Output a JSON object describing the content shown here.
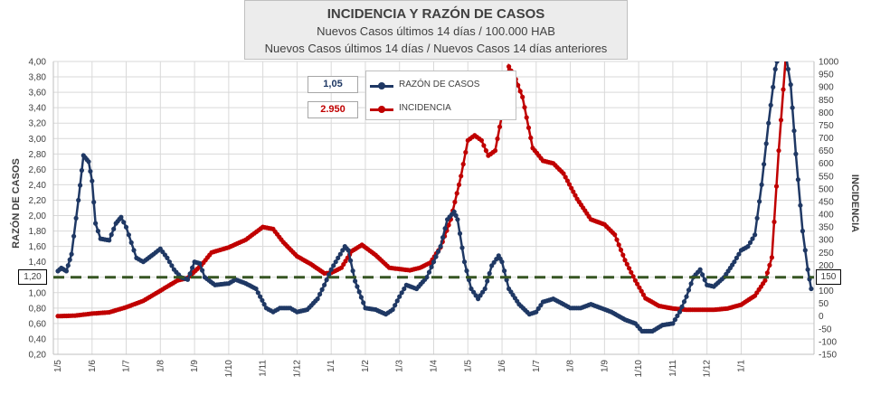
{
  "header": {
    "title": "INCIDENCIA Y RAZÓN DE CASOS",
    "subtitle1": "Nuevos Casos últimos 14 días / 100.000  HAB",
    "subtitle2": "Nuevos Casos últimos 14 días / Nuevos Casos 14 días anteriores"
  },
  "current": {
    "ratio": "1,05",
    "incidence": "2.950"
  },
  "colors": {
    "ratio": "#1f3864",
    "incidence": "#c00000",
    "threshold": "#375623",
    "grid": "#d9d9d9"
  },
  "chart_data": {
    "type": "line",
    "title": "INCIDENCIA Y RAZÓN DE CASOS",
    "ylabel_left": "RAZÓN DE CASOS",
    "ylabel_right": "INCIDENCIA",
    "ylim_left": [
      0.2,
      4.0
    ],
    "ylim_right": [
      -150,
      1000
    ],
    "threshold": {
      "value": 1.2,
      "left_label": "1,20",
      "right_label": "150"
    },
    "x_tick_labels": [
      "1/5",
      "1/6",
      "1/7",
      "1/8",
      "1/9",
      "1/10",
      "1/11",
      "1/12",
      "1/1",
      "1/2",
      "1/3",
      "1/4",
      "1/5",
      "1/6",
      "1/7",
      "1/8",
      "1/9",
      "1/10",
      "1/11",
      "1/12",
      "1/1"
    ],
    "left_tick_labels": [
      "0,20",
      "0,40",
      "0,60",
      "0,80",
      "1,00",
      "1,20",
      "1,40",
      "1,60",
      "1,80",
      "2,00",
      "2,20",
      "2,40",
      "2,60",
      "2,80",
      "3,00",
      "3,20",
      "3,40",
      "3,60",
      "3,80",
      "4,00"
    ],
    "right_tick_labels": [
      "-150",
      "-100",
      "-50",
      "0",
      "50",
      "100",
      "150",
      "200",
      "250",
      "300",
      "350",
      "400",
      "450",
      "500",
      "550",
      "600",
      "650",
      "700",
      "750",
      "800",
      "850",
      "900",
      "950",
      "1000"
    ],
    "series": [
      {
        "name": "RAZÓN DE CASOS",
        "axis": "left",
        "points": [
          [
            0,
            1.28
          ],
          [
            0.1,
            1.32
          ],
          [
            0.25,
            1.28
          ],
          [
            0.4,
            1.5
          ],
          [
            0.6,
            2.2
          ],
          [
            0.75,
            2.78
          ],
          [
            0.9,
            2.7
          ],
          [
            1.0,
            2.45
          ],
          [
            1.1,
            1.9
          ],
          [
            1.25,
            1.7
          ],
          [
            1.5,
            1.68
          ],
          [
            1.7,
            1.9
          ],
          [
            1.85,
            1.98
          ],
          [
            2.0,
            1.85
          ],
          [
            2.15,
            1.65
          ],
          [
            2.3,
            1.45
          ],
          [
            2.5,
            1.4
          ],
          [
            2.8,
            1.5
          ],
          [
            3.0,
            1.57
          ],
          [
            3.2,
            1.45
          ],
          [
            3.4,
            1.3
          ],
          [
            3.6,
            1.2
          ],
          [
            3.8,
            1.17
          ],
          [
            4.0,
            1.4
          ],
          [
            4.15,
            1.38
          ],
          [
            4.3,
            1.2
          ],
          [
            4.6,
            1.1
          ],
          [
            5.0,
            1.12
          ],
          [
            5.2,
            1.17
          ],
          [
            5.5,
            1.12
          ],
          [
            5.8,
            1.05
          ],
          [
            6.1,
            0.8
          ],
          [
            6.3,
            0.75
          ],
          [
            6.5,
            0.8
          ],
          [
            6.8,
            0.8
          ],
          [
            7.0,
            0.75
          ],
          [
            7.3,
            0.78
          ],
          [
            7.6,
            0.92
          ],
          [
            7.8,
            1.1
          ],
          [
            8.0,
            1.3
          ],
          [
            8.2,
            1.45
          ],
          [
            8.4,
            1.6
          ],
          [
            8.5,
            1.55
          ],
          [
            8.7,
            1.15
          ],
          [
            9.0,
            0.8
          ],
          [
            9.3,
            0.78
          ],
          [
            9.6,
            0.72
          ],
          [
            9.8,
            0.78
          ],
          [
            10.0,
            0.95
          ],
          [
            10.2,
            1.1
          ],
          [
            10.5,
            1.05
          ],
          [
            10.8,
            1.2
          ],
          [
            11.0,
            1.4
          ],
          [
            11.2,
            1.6
          ],
          [
            11.4,
            1.95
          ],
          [
            11.6,
            2.05
          ],
          [
            11.7,
            1.95
          ],
          [
            11.9,
            1.4
          ],
          [
            12.1,
            1.05
          ],
          [
            12.3,
            0.92
          ],
          [
            12.5,
            1.05
          ],
          [
            12.7,
            1.35
          ],
          [
            12.9,
            1.48
          ],
          [
            13.0,
            1.4
          ],
          [
            13.2,
            1.05
          ],
          [
            13.5,
            0.85
          ],
          [
            13.8,
            0.72
          ],
          [
            14.0,
            0.75
          ],
          [
            14.2,
            0.88
          ],
          [
            14.5,
            0.92
          ],
          [
            14.8,
            0.85
          ],
          [
            15.0,
            0.8
          ],
          [
            15.3,
            0.8
          ],
          [
            15.6,
            0.85
          ],
          [
            15.9,
            0.8
          ],
          [
            16.2,
            0.75
          ],
          [
            16.6,
            0.65
          ],
          [
            16.9,
            0.6
          ],
          [
            17.1,
            0.5
          ],
          [
            17.4,
            0.5
          ],
          [
            17.7,
            0.58
          ],
          [
            18.0,
            0.6
          ],
          [
            18.2,
            0.75
          ],
          [
            18.4,
            0.95
          ],
          [
            18.6,
            1.2
          ],
          [
            18.8,
            1.3
          ],
          [
            19.0,
            1.1
          ],
          [
            19.2,
            1.08
          ],
          [
            19.5,
            1.2
          ],
          [
            19.8,
            1.4
          ],
          [
            20.0,
            1.55
          ],
          [
            20.2,
            1.6
          ],
          [
            20.4,
            1.75
          ],
          [
            20.6,
            2.4
          ],
          [
            20.8,
            3.2
          ],
          [
            21.0,
            3.9
          ],
          [
            21.1,
            4.1
          ],
          [
            21.3,
            4.1
          ],
          [
            21.45,
            3.7
          ],
          [
            21.6,
            2.8
          ],
          [
            21.8,
            1.8
          ],
          [
            21.95,
            1.3
          ],
          [
            22.05,
            1.05
          ]
        ]
      },
      {
        "name": "INCIDENCIA",
        "axis": "right",
        "points": [
          [
            0,
            0
          ],
          [
            0.5,
            2
          ],
          [
            1.0,
            10
          ],
          [
            1.5,
            15
          ],
          [
            2.0,
            35
          ],
          [
            2.5,
            60
          ],
          [
            3.0,
            100
          ],
          [
            3.5,
            140
          ],
          [
            3.8,
            150
          ],
          [
            4.2,
            200
          ],
          [
            4.5,
            250
          ],
          [
            5.0,
            270
          ],
          [
            5.5,
            300
          ],
          [
            6.0,
            350
          ],
          [
            6.3,
            342
          ],
          [
            6.6,
            290
          ],
          [
            7.0,
            235
          ],
          [
            7.4,
            205
          ],
          [
            7.8,
            168
          ],
          [
            8.0,
            170
          ],
          [
            8.3,
            190
          ],
          [
            8.6,
            255
          ],
          [
            8.9,
            280
          ],
          [
            9.3,
            240
          ],
          [
            9.7,
            190
          ],
          [
            10.0,
            185
          ],
          [
            10.3,
            180
          ],
          [
            10.6,
            190
          ],
          [
            10.9,
            210
          ],
          [
            11.2,
            270
          ],
          [
            11.5,
            380
          ],
          [
            11.8,
            550
          ],
          [
            12.0,
            690
          ],
          [
            12.2,
            710
          ],
          [
            12.4,
            690
          ],
          [
            12.6,
            630
          ],
          [
            12.8,
            650
          ],
          [
            13.0,
            790
          ],
          [
            13.2,
            980
          ],
          [
            13.4,
            930
          ],
          [
            13.6,
            860
          ],
          [
            13.9,
            660
          ],
          [
            14.2,
            610
          ],
          [
            14.5,
            600
          ],
          [
            14.8,
            560
          ],
          [
            15.2,
            460
          ],
          [
            15.6,
            380
          ],
          [
            16.0,
            360
          ],
          [
            16.3,
            320
          ],
          [
            16.6,
            220
          ],
          [
            16.9,
            140
          ],
          [
            17.2,
            70
          ],
          [
            17.6,
            40
          ],
          [
            18.0,
            30
          ],
          [
            18.4,
            25
          ],
          [
            18.8,
            25
          ],
          [
            19.2,
            25
          ],
          [
            19.6,
            30
          ],
          [
            20.0,
            45
          ],
          [
            20.4,
            80
          ],
          [
            20.7,
            140
          ],
          [
            20.9,
            230
          ],
          [
            21.1,
            650
          ],
          [
            21.3,
            1010
          ]
        ]
      }
    ]
  },
  "legend": {
    "ratio_label": "RAZÓN DE CASOS",
    "incidence_label": "INCIDENCIA"
  }
}
